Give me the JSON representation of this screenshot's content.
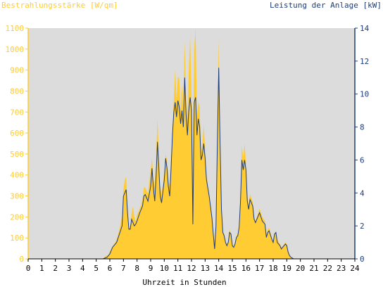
{
  "chart_data": {
    "type": "area",
    "left_axis_title": "Bestrahlungsstärke [W/qm]",
    "right_axis_title": "Leistung der Anlage [kW]",
    "xlabel": "Uhrzeit in Stunden",
    "xlim": [
      0,
      24
    ],
    "x_ticks": [
      "0",
      "1",
      "2",
      "3",
      "4",
      "5",
      "6",
      "7",
      "8",
      "9",
      "10",
      "11",
      "12",
      "13",
      "14",
      "15",
      "16",
      "17",
      "18",
      "19",
      "20",
      "21",
      "22",
      "23",
      "24"
    ],
    "ylim_left": [
      0,
      1100
    ],
    "y_ticks_left": [
      "0",
      "100",
      "200",
      "300",
      "400",
      "500",
      "600",
      "700",
      "800",
      "900",
      "1000",
      "1100"
    ],
    "ylim_right": [
      0,
      14
    ],
    "y_ticks_right": [
      "0",
      "2",
      "4",
      "6",
      "8",
      "10",
      "12",
      "14"
    ],
    "plot_background": "#DCDCDC",
    "grid": false,
    "series": [
      {
        "name": "Bestrahlungsstärke [W/qm]",
        "axis": "left",
        "style": "area",
        "color": "#FFCC33",
        "points": [
          [
            5.5,
            0
          ],
          [
            5.6,
            10
          ],
          [
            5.9,
            20
          ],
          [
            6.0,
            35
          ],
          [
            6.2,
            60
          ],
          [
            6.5,
            90
          ],
          [
            6.7,
            140
          ],
          [
            6.9,
            200
          ],
          [
            7.0,
            330
          ],
          [
            7.1,
            380
          ],
          [
            7.2,
            390
          ],
          [
            7.3,
            250
          ],
          [
            7.4,
            140
          ],
          [
            7.5,
            150
          ],
          [
            7.6,
            220
          ],
          [
            7.7,
            250
          ],
          [
            7.8,
            200
          ],
          [
            7.9,
            180
          ],
          [
            8.0,
            210
          ],
          [
            8.2,
            240
          ],
          [
            8.4,
            280
          ],
          [
            8.5,
            340
          ],
          [
            8.6,
            340
          ],
          [
            8.8,
            310
          ],
          [
            9.0,
            420
          ],
          [
            9.1,
            480
          ],
          [
            9.2,
            380
          ],
          [
            9.3,
            340
          ],
          [
            9.4,
            480
          ],
          [
            9.5,
            670
          ],
          [
            9.6,
            500
          ],
          [
            9.7,
            350
          ],
          [
            9.8,
            300
          ],
          [
            10.0,
            410
          ],
          [
            10.1,
            500
          ],
          [
            10.2,
            470
          ],
          [
            10.3,
            380
          ],
          [
            10.4,
            340
          ],
          [
            10.5,
            470
          ],
          [
            10.6,
            600
          ],
          [
            10.7,
            760
          ],
          [
            10.8,
            900
          ],
          [
            10.9,
            760
          ],
          [
            11.0,
            870
          ],
          [
            11.1,
            860
          ],
          [
            11.2,
            700
          ],
          [
            11.3,
            830
          ],
          [
            11.4,
            720
          ],
          [
            11.5,
            1040
          ],
          [
            11.6,
            760
          ],
          [
            11.7,
            660
          ],
          [
            11.8,
            900
          ],
          [
            11.9,
            1060
          ],
          [
            12.0,
            800
          ],
          [
            12.1,
            400
          ],
          [
            12.2,
            1000
          ],
          [
            12.3,
            1100
          ],
          [
            12.4,
            680
          ],
          [
            12.5,
            750
          ],
          [
            12.6,
            720
          ],
          [
            12.7,
            500
          ],
          [
            12.8,
            550
          ],
          [
            12.9,
            640
          ],
          [
            13.0,
            520
          ],
          [
            13.1,
            400
          ],
          [
            13.2,
            350
          ],
          [
            13.3,
            300
          ],
          [
            13.5,
            200
          ],
          [
            13.6,
            120
          ],
          [
            13.7,
            60
          ],
          [
            13.8,
            150
          ],
          [
            13.9,
            580
          ],
          [
            14.0,
            1050
          ],
          [
            14.1,
            590
          ],
          [
            14.2,
            250
          ],
          [
            14.3,
            130
          ],
          [
            14.4,
            120
          ],
          [
            14.5,
            80
          ],
          [
            14.6,
            70
          ],
          [
            14.7,
            80
          ],
          [
            14.8,
            140
          ],
          [
            14.9,
            120
          ],
          [
            15.0,
            70
          ],
          [
            15.1,
            60
          ],
          [
            15.2,
            80
          ],
          [
            15.3,
            110
          ],
          [
            15.4,
            120
          ],
          [
            15.5,
            150
          ],
          [
            15.6,
            300
          ],
          [
            15.7,
            540
          ],
          [
            15.8,
            480
          ],
          [
            15.9,
            550
          ],
          [
            16.0,
            460
          ],
          [
            16.1,
            300
          ],
          [
            16.2,
            260
          ],
          [
            16.3,
            310
          ],
          [
            16.5,
            270
          ],
          [
            16.6,
            200
          ],
          [
            16.7,
            180
          ],
          [
            16.9,
            220
          ],
          [
            17.0,
            240
          ],
          [
            17.2,
            200
          ],
          [
            17.4,
            180
          ],
          [
            17.5,
            110
          ],
          [
            17.6,
            140
          ],
          [
            17.7,
            150
          ],
          [
            17.9,
            100
          ],
          [
            18.0,
            80
          ],
          [
            18.1,
            120
          ],
          [
            18.2,
            130
          ],
          [
            18.3,
            90
          ],
          [
            18.5,
            70
          ],
          [
            18.6,
            55
          ],
          [
            18.7,
            60
          ],
          [
            18.9,
            80
          ],
          [
            19.0,
            70
          ],
          [
            19.1,
            40
          ],
          [
            19.2,
            20
          ],
          [
            19.3,
            10
          ],
          [
            19.4,
            5
          ],
          [
            19.5,
            0
          ]
        ]
      },
      {
        "name": "Leistung der Anlage [kW]",
        "axis": "right",
        "style": "line",
        "color": "#1F3D7A",
        "points": [
          [
            5.5,
            0
          ],
          [
            5.8,
            0.1
          ],
          [
            6.0,
            0.3
          ],
          [
            6.2,
            0.7
          ],
          [
            6.5,
            1.0
          ],
          [
            6.7,
            1.5
          ],
          [
            6.9,
            2.0
          ],
          [
            7.0,
            3.8
          ],
          [
            7.1,
            4.0
          ],
          [
            7.2,
            4.2
          ],
          [
            7.3,
            2.8
          ],
          [
            7.4,
            1.8
          ],
          [
            7.5,
            1.8
          ],
          [
            7.6,
            2.4
          ],
          [
            7.7,
            2.2
          ],
          [
            7.8,
            2.0
          ],
          [
            7.9,
            2.1
          ],
          [
            8.0,
            2.3
          ],
          [
            8.2,
            2.8
          ],
          [
            8.4,
            3.2
          ],
          [
            8.5,
            3.8
          ],
          [
            8.6,
            3.9
          ],
          [
            8.8,
            3.5
          ],
          [
            9.0,
            4.4
          ],
          [
            9.1,
            5.5
          ],
          [
            9.2,
            4.3
          ],
          [
            9.3,
            3.5
          ],
          [
            9.4,
            5.0
          ],
          [
            9.5,
            7.1
          ],
          [
            9.6,
            5.5
          ],
          [
            9.7,
            3.8
          ],
          [
            9.8,
            3.4
          ],
          [
            10.0,
            4.8
          ],
          [
            10.1,
            6.1
          ],
          [
            10.2,
            5.5
          ],
          [
            10.3,
            4.4
          ],
          [
            10.4,
            3.8
          ],
          [
            10.5,
            5.5
          ],
          [
            10.6,
            7.5
          ],
          [
            10.7,
            8.9
          ],
          [
            10.8,
            9.5
          ],
          [
            10.9,
            8.6
          ],
          [
            11.0,
            9.6
          ],
          [
            11.1,
            9.2
          ],
          [
            11.2,
            8.2
          ],
          [
            11.3,
            9.0
          ],
          [
            11.4,
            8.0
          ],
          [
            11.5,
            11.0
          ],
          [
            11.6,
            8.8
          ],
          [
            11.7,
            7.5
          ],
          [
            11.8,
            9.0
          ],
          [
            11.9,
            9.8
          ],
          [
            12.0,
            9.0
          ],
          [
            12.1,
            2.1
          ],
          [
            12.2,
            9.5
          ],
          [
            12.3,
            9.8
          ],
          [
            12.4,
            7.5
          ],
          [
            12.5,
            8.5
          ],
          [
            12.6,
            8.0
          ],
          [
            12.7,
            6.0
          ],
          [
            12.8,
            6.3
          ],
          [
            12.9,
            7.0
          ],
          [
            13.0,
            6.1
          ],
          [
            13.1,
            4.8
          ],
          [
            13.2,
            4.3
          ],
          [
            13.3,
            3.8
          ],
          [
            13.5,
            2.5
          ],
          [
            13.6,
            1.5
          ],
          [
            13.7,
            0.6
          ],
          [
            13.8,
            2.0
          ],
          [
            13.9,
            7.0
          ],
          [
            14.0,
            11.6
          ],
          [
            14.1,
            7.0
          ],
          [
            14.2,
            3.0
          ],
          [
            14.3,
            1.6
          ],
          [
            14.4,
            1.4
          ],
          [
            14.5,
            1.0
          ],
          [
            14.6,
            0.8
          ],
          [
            14.7,
            1.0
          ],
          [
            14.8,
            1.6
          ],
          [
            14.9,
            1.5
          ],
          [
            15.0,
            0.8
          ],
          [
            15.1,
            0.7
          ],
          [
            15.2,
            0.9
          ],
          [
            15.3,
            1.3
          ],
          [
            15.4,
            1.4
          ],
          [
            15.5,
            1.9
          ],
          [
            15.6,
            3.5
          ],
          [
            15.7,
            6.0
          ],
          [
            15.8,
            5.4
          ],
          [
            15.9,
            6.0
          ],
          [
            16.0,
            5.4
          ],
          [
            16.1,
            3.5
          ],
          [
            16.2,
            3.0
          ],
          [
            16.3,
            3.6
          ],
          [
            16.5,
            3.2
          ],
          [
            16.6,
            2.4
          ],
          [
            16.7,
            2.2
          ],
          [
            16.9,
            2.6
          ],
          [
            17.0,
            2.8
          ],
          [
            17.2,
            2.3
          ],
          [
            17.4,
            2.1
          ],
          [
            17.5,
            1.3
          ],
          [
            17.6,
            1.6
          ],
          [
            17.7,
            1.7
          ],
          [
            17.9,
            1.2
          ],
          [
            18.0,
            1.0
          ],
          [
            18.1,
            1.5
          ],
          [
            18.2,
            1.6
          ],
          [
            18.3,
            1.0
          ],
          [
            18.5,
            0.8
          ],
          [
            18.6,
            0.6
          ],
          [
            18.7,
            0.7
          ],
          [
            18.9,
            0.9
          ],
          [
            19.0,
            0.8
          ],
          [
            19.1,
            0.4
          ],
          [
            19.2,
            0.2
          ],
          [
            19.3,
            0.1
          ],
          [
            19.4,
            0.05
          ],
          [
            19.5,
            0
          ]
        ]
      }
    ]
  }
}
